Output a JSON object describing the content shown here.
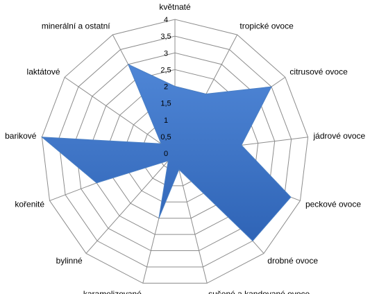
{
  "chart_data": {
    "type": "radar",
    "categories": [
      "květnaté",
      "tropické ovoce",
      "citrusové ovoce",
      "jádrové ovoce",
      "peckové ovoce",
      "drobné ovoce",
      "sušené a kandované ovoce",
      "karamelizované",
      "bylinné",
      "kořenité",
      "barikové",
      "laktátové",
      "minerální a ostatní"
    ],
    "series": [
      {
        "values": [
          2,
          2,
          3.5,
          2,
          3.7,
          3.5,
          0.5,
          2,
          0.3,
          2.5,
          4,
          0.5,
          3
        ],
        "color": "#3d75c9"
      }
    ],
    "ticks": [
      "0",
      "0,5",
      "1",
      "1,5",
      "2",
      "2,5",
      "3",
      "3,5",
      "4"
    ],
    "tick_values": [
      0,
      0.5,
      1,
      1.5,
      2,
      2.5,
      3,
      3.5,
      4
    ],
    "rmax": 4,
    "grid": true,
    "grid_color": "#8c8c8c",
    "legend": "none"
  }
}
